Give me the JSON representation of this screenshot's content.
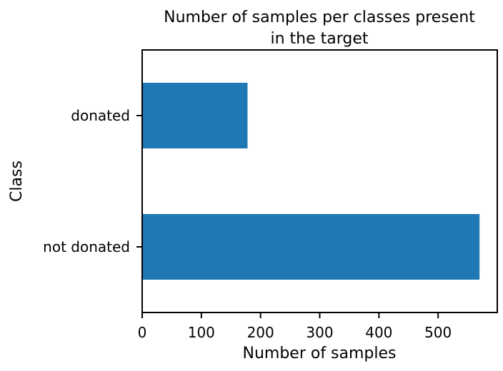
{
  "chart_data": {
    "type": "bar",
    "orientation": "horizontal",
    "title_lines": [
      "Number of samples per classes present",
      "in the target"
    ],
    "xlabel": "Number of samples",
    "ylabel": "Class",
    "categories": [
      "not donated",
      "donated"
    ],
    "values": [
      570,
      178
    ],
    "xlim": [
      0,
      600
    ],
    "xticks": [
      0,
      100,
      200,
      300,
      400,
      500
    ],
    "grid": false,
    "bar_color": "#1f77b4"
  }
}
